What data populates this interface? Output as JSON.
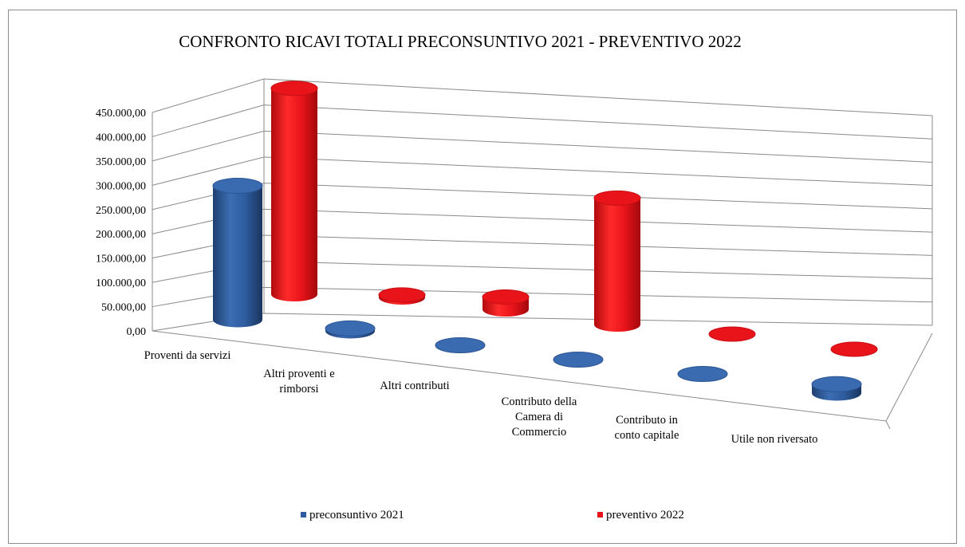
{
  "chart_data": {
    "type": "bar",
    "style": "3d-cylinder",
    "title": "CONFRONTO RICAVI TOTALI PRECONSUNTIVO 2021 - PREVENTIVO 2022",
    "categories": [
      [
        "Proventi da servizi"
      ],
      [
        "Altri proventi e",
        "rimborsi"
      ],
      [
        "Altri contributi"
      ],
      [
        "Contributo della",
        "Camera di",
        "Commercio"
      ],
      [
        "Contributo in",
        "conto capitale"
      ],
      [
        "Utile non riversato"
      ]
    ],
    "series": [
      {
        "name": "preconsuntivo 2021",
        "color": "#2e5c9e",
        "values": [
          270000,
          5000,
          0,
          0,
          0,
          18000
        ]
      },
      {
        "name": "preventivo 2022",
        "color": "#e8141a",
        "values": [
          415000,
          5000,
          25000,
          255000,
          0,
          0
        ]
      }
    ],
    "yticks": [
      "0,00",
      "50.000,00",
      "100.000,00",
      "150.000,00",
      "200.000,00",
      "250.000,00",
      "300.000,00",
      "350.000,00",
      "400.000,00",
      "450.000,00"
    ],
    "ylim": [
      0,
      450000
    ],
    "grid": true,
    "legend_position": "bottom"
  }
}
